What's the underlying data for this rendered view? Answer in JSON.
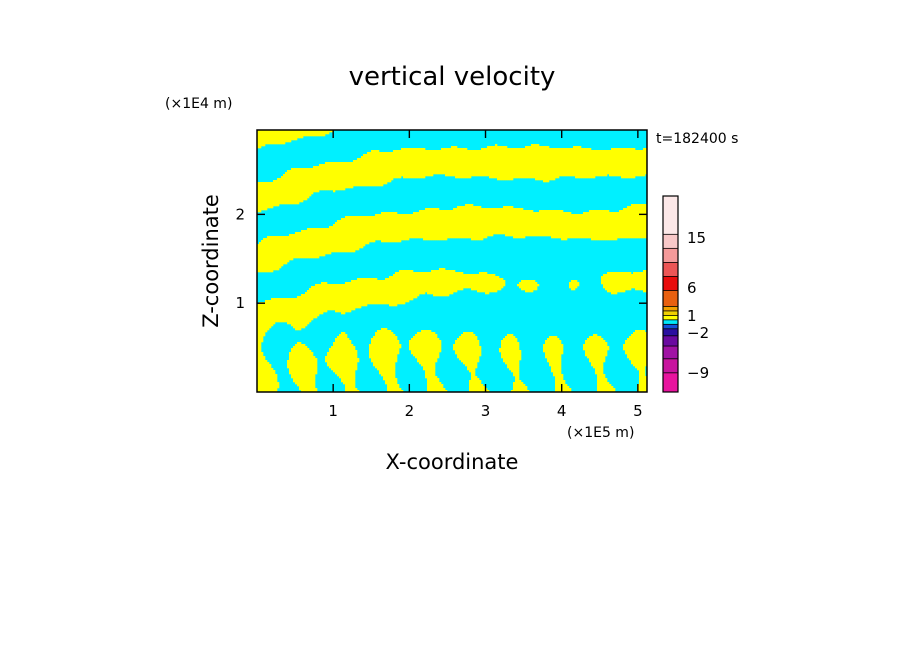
{
  "chart_data": {
    "type": "heatmap",
    "title": "vertical velocity",
    "xlabel": "X-coordinate",
    "ylabel": "Z-coordinate",
    "x_scale_label": "(×1E5 m)",
    "y_scale_label": "(×1E4 m)",
    "time_label": "t=182400 s",
    "xlim": [
      0,
      5.12
    ],
    "ylim": [
      0,
      2.95
    ],
    "x_ticks": [
      1,
      2,
      3,
      4,
      5
    ],
    "y_ticks": [
      1,
      2
    ],
    "grid": false,
    "colorbar": {
      "levels": [
        {
          "color": "#e8149e"
        },
        {
          "color": "#c8149e"
        },
        {
          "color": "#a012a4"
        },
        {
          "color": "#6a0aa0"
        },
        {
          "color": "#2a10a0"
        },
        {
          "color": "#1450d8"
        },
        {
          "color": "#00e8f8"
        },
        {
          "color": "#ffff00"
        },
        {
          "color": "#f0d000"
        },
        {
          "color": "#f0a000"
        },
        {
          "color": "#e86010"
        },
        {
          "color": "#e80c0c"
        },
        {
          "color": "#ec5656"
        },
        {
          "color": "#f49a9a"
        },
        {
          "color": "#f8c8c8"
        },
        {
          "color": "#fce8e8"
        }
      ],
      "tick_labels": [
        "15",
        "6",
        "1",
        "−2",
        "−9"
      ]
    },
    "field_colors": {
      "negative": "#00f0ff",
      "positive": "#ffff00"
    }
  }
}
